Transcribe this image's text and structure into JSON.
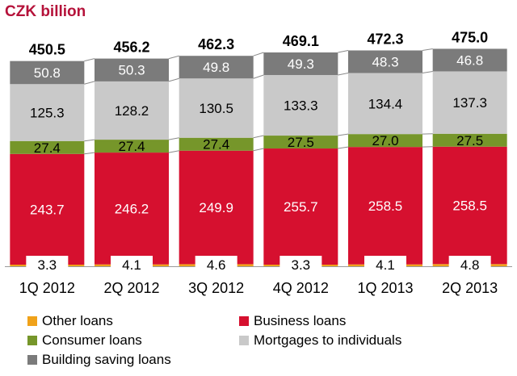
{
  "unit_title": "CZK billion",
  "colors": {
    "title": "#b5123a",
    "other": "#f0a21a",
    "business": "#d6102f",
    "consumer": "#76962a",
    "mortgages": "#c9c9c9",
    "building": "#7b7b7b"
  },
  "chart_data": {
    "type": "bar",
    "stacked": true,
    "title": "CZK billion",
    "categories": [
      "1Q 2012",
      "2Q 2012",
      "3Q 2012",
      "4Q 2012",
      "1Q 2013",
      "2Q 2013"
    ],
    "totals": [
      "450.5",
      "456.2",
      "462.3",
      "469.1",
      "472.3",
      "475.0"
    ],
    "series": [
      {
        "name": "Other loans",
        "key": "other",
        "values": [
          3.3,
          4.1,
          4.6,
          3.3,
          4.1,
          4.8
        ]
      },
      {
        "name": "Business loans",
        "key": "business",
        "values": [
          243.7,
          246.2,
          249.9,
          255.7,
          258.5,
          258.5
        ]
      },
      {
        "name": "Consumer loans",
        "key": "consumer",
        "values": [
          27.4,
          27.4,
          27.4,
          27.5,
          27.0,
          27.5
        ]
      },
      {
        "name": "Mortgages to individuals",
        "key": "mortgages",
        "values": [
          125.3,
          128.2,
          130.5,
          133.3,
          134.4,
          137.3
        ]
      },
      {
        "name": "Building saving loans",
        "key": "building",
        "values": [
          50.8,
          50.3,
          49.8,
          49.3,
          48.3,
          46.8
        ]
      }
    ],
    "labels": {
      "other": [
        "3.3",
        "4.1",
        "4.6",
        "3.3",
        "4.1",
        "4.8"
      ],
      "business": [
        "243.7",
        "246.2",
        "249.9",
        "255.7",
        "258.5",
        "258.5"
      ],
      "consumer": [
        "27.4",
        "27.4",
        "27.4",
        "27.5",
        "27.0",
        "27.5"
      ],
      "mortgages": [
        "125.3",
        "128.2",
        "130.5",
        "133.3",
        "134.4",
        "137.3"
      ],
      "building": [
        "50.8",
        "50.3",
        "49.8",
        "49.3",
        "48.3",
        "46.8"
      ]
    },
    "legend_position": "bottom",
    "grid": false
  },
  "legend": [
    {
      "label": "Other loans",
      "key": "other"
    },
    {
      "label": "Business loans",
      "key": "business"
    },
    {
      "label": "Consumer loans",
      "key": "consumer"
    },
    {
      "label": "Mortgages to individuals",
      "key": "mortgages"
    },
    {
      "label": "Building saving loans",
      "key": "building"
    }
  ]
}
